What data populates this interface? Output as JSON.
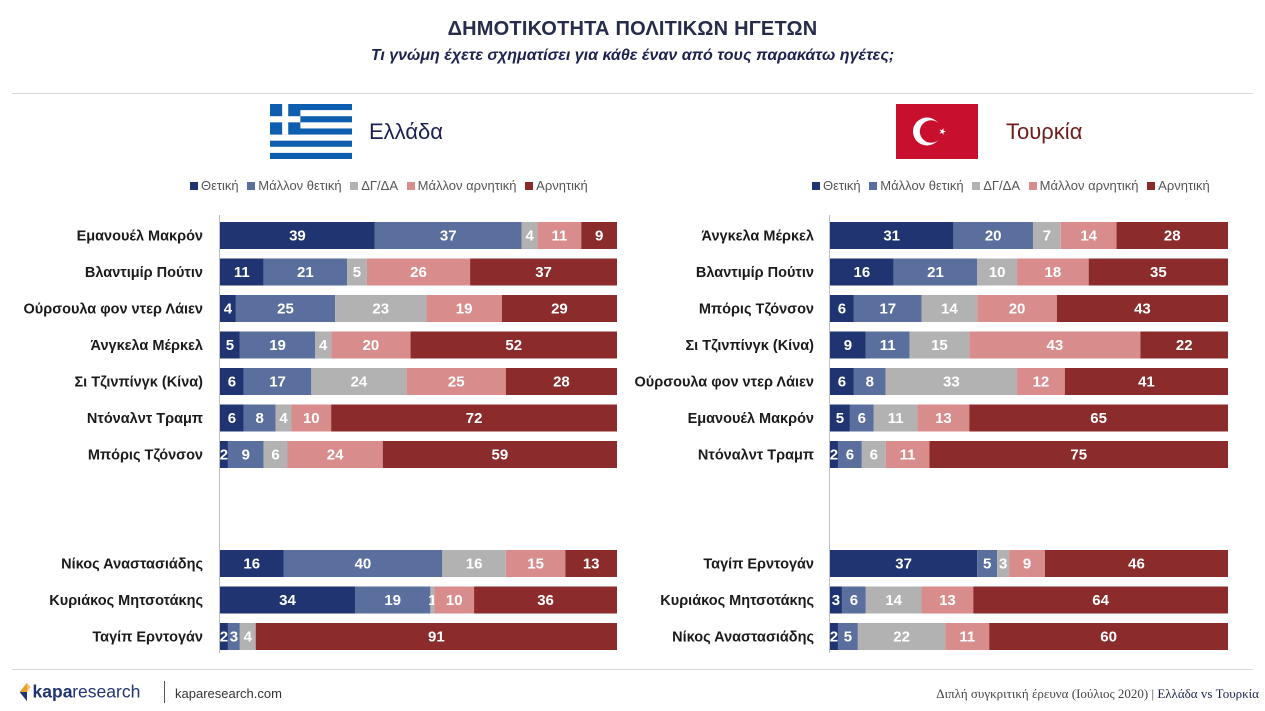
{
  "header": {
    "title": "ΔΗΜΟΤΙΚΟΤΗΤΑ ΠΟΛΙΤΙΚΩΝ ΗΓΕΤΩΝ",
    "subtitle": "Τι γνώμη έχετε σχηματίσει για κάθε έναν από τους παρακάτω ηγέτες;"
  },
  "colors": {
    "positive": "#1f3470",
    "rather_positive": "#5b6f9e",
    "dk_na": "#b2b2b2",
    "rather_negative": "#d98c8c",
    "negative": "#8b2b2b",
    "title": "#262c4a",
    "turkey_label": "#6d1c1c"
  },
  "footer": {
    "logo_word_bold": "kapa",
    "logo_word_light": "research",
    "url": "kaparesearch.com",
    "note": "Διπλή συγκριτική έρευνα (Ιούλιος 2020) |",
    "note_highlight": "Ελλάδα vs Τουρκία"
  },
  "chart_data": [
    {
      "type": "bar",
      "orientation": "horizontal",
      "stacked": true,
      "panel_title": "Ελλάδα",
      "flag": "greek-flag",
      "legend_position": "top",
      "series_names": [
        "Θετική",
        "Μάλλον θετική",
        "ΔΓ/ΔΑ",
        "Μάλλον αρνητική",
        "Αρνητική"
      ],
      "group1": [
        {
          "label": "Εμανουέλ Μακρόν",
          "values": [
            39,
            37,
            4,
            11,
            9
          ]
        },
        {
          "label": "Βλαντιμίρ Πούτιν",
          "values": [
            11,
            21,
            5,
            26,
            37
          ]
        },
        {
          "label": "Ούρσουλα φον ντερ Λάιεν",
          "values": [
            4,
            25,
            23,
            19,
            29
          ]
        },
        {
          "label": "Άνγκελα Μέρκελ",
          "values": [
            5,
            19,
            4,
            20,
            52
          ]
        },
        {
          "label": "Σι Τζινπίνγκ (Κίνα)",
          "values": [
            6,
            17,
            24,
            25,
            28
          ]
        },
        {
          "label": "Ντόναλντ Τραμπ",
          "values": [
            6,
            8,
            4,
            10,
            72
          ]
        },
        {
          "label": "Μπόρις Τζόνσον",
          "values": [
            2,
            9,
            6,
            24,
            59
          ]
        }
      ],
      "group2": [
        {
          "label": "Νίκος Αναστασιάδης",
          "values": [
            16,
            40,
            16,
            15,
            13
          ]
        },
        {
          "label": "Κυριάκος Μητσοτάκης",
          "values": [
            34,
            19,
            1,
            10,
            36
          ]
        },
        {
          "label": "Ταγίπ Ερντογάν",
          "values": [
            2,
            3,
            4,
            0,
            91
          ]
        }
      ]
    },
    {
      "type": "bar",
      "orientation": "horizontal",
      "stacked": true,
      "panel_title": "Τουρκία",
      "flag": "turkish-flag",
      "legend_position": "top",
      "series_names": [
        "Θετική",
        "Μάλλον θετική",
        "ΔΓ/ΔΑ",
        "Μάλλον αρνητική",
        "Αρνητική"
      ],
      "group1": [
        {
          "label": "Άνγκελα Μέρκελ",
          "values": [
            31,
            20,
            7,
            14,
            28
          ]
        },
        {
          "label": "Βλαντιμίρ Πούτιν",
          "values": [
            16,
            21,
            10,
            18,
            35
          ]
        },
        {
          "label": "Μπόρις Τζόνσον",
          "values": [
            6,
            17,
            14,
            20,
            43
          ]
        },
        {
          "label": "Σι Τζινπίνγκ (Κίνα)",
          "values": [
            9,
            11,
            15,
            43,
            22
          ]
        },
        {
          "label": "Ούρσουλα φον ντερ Λάιεν",
          "values": [
            6,
            8,
            33,
            12,
            41
          ]
        },
        {
          "label": "Εμανουέλ Μακρόν",
          "values": [
            5,
            6,
            11,
            13,
            65
          ]
        },
        {
          "label": "Ντόναλντ Τραμπ",
          "values": [
            2,
            6,
            6,
            11,
            75
          ]
        }
      ],
      "group2": [
        {
          "label": "Ταγίπ Ερντογάν",
          "values": [
            37,
            5,
            3,
            9,
            46
          ]
        },
        {
          "label": "Κυριάκος Μητσοτάκης",
          "values": [
            3,
            6,
            14,
            13,
            64
          ]
        },
        {
          "label": "Νίκος Αναστασιάδης",
          "values": [
            2,
            5,
            22,
            11,
            60
          ]
        }
      ]
    }
  ]
}
